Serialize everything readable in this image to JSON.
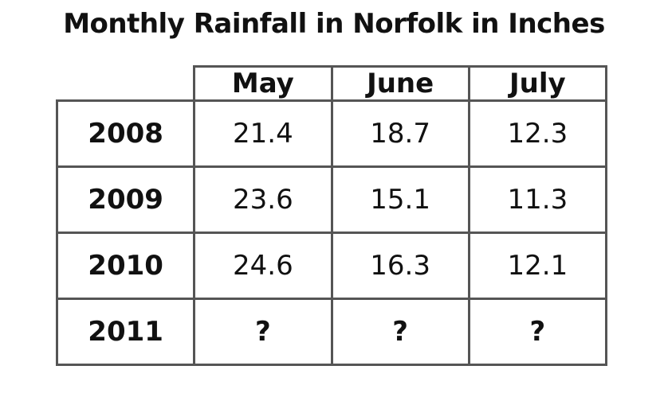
{
  "title": "Monthly Rainfall in Norfolk in Inches",
  "table": {
    "columns": [
      "May",
      "June",
      "July"
    ],
    "rows": [
      [
        "2008",
        21.4,
        18.7,
        12.3
      ],
      [
        "2009",
        23.6,
        15.1,
        11.3
      ],
      [
        "2010",
        24.6,
        16.3,
        12.1
      ],
      [
        "2011",
        "?",
        "?",
        "?"
      ]
    ]
  }
}
